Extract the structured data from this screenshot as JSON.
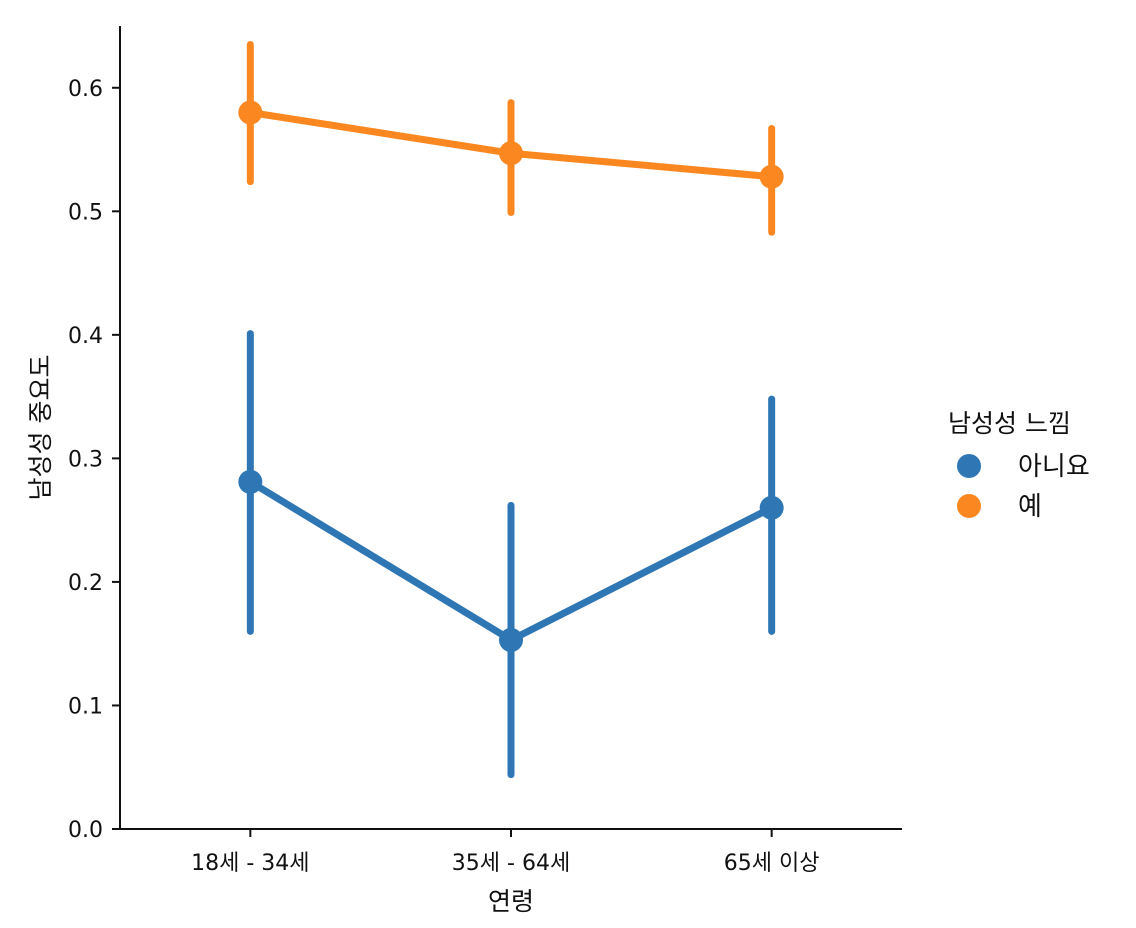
{
  "chart_data": {
    "type": "line",
    "categories": [
      "18세 - 34세",
      "35세 - 64세",
      "65세 이상"
    ],
    "xlabel": "연령",
    "ylabel": "남성성 중요도",
    "ylim": [
      0.0,
      0.65
    ],
    "yticks": [
      0.0,
      0.1,
      0.2,
      0.3,
      0.4,
      0.5,
      0.6
    ],
    "ytick_labels": [
      "0.0",
      "0.1",
      "0.2",
      "0.3",
      "0.4",
      "0.5",
      "0.6"
    ],
    "grid": false,
    "legend": {
      "title": "남성성 느낌",
      "placement": "right"
    },
    "series": [
      {
        "name": "아니요",
        "color": "#2e77b4",
        "values": [
          0.281,
          0.153,
          0.26
        ],
        "ci_low": [
          0.16,
          0.044,
          0.16
        ],
        "ci_high": [
          0.401,
          0.262,
          0.348
        ]
      },
      {
        "name": "예",
        "color": "#fb8721",
        "values": [
          0.58,
          0.547,
          0.528
        ],
        "ci_low": [
          0.524,
          0.499,
          0.483
        ],
        "ci_high": [
          0.635,
          0.588,
          0.567
        ]
      }
    ]
  }
}
